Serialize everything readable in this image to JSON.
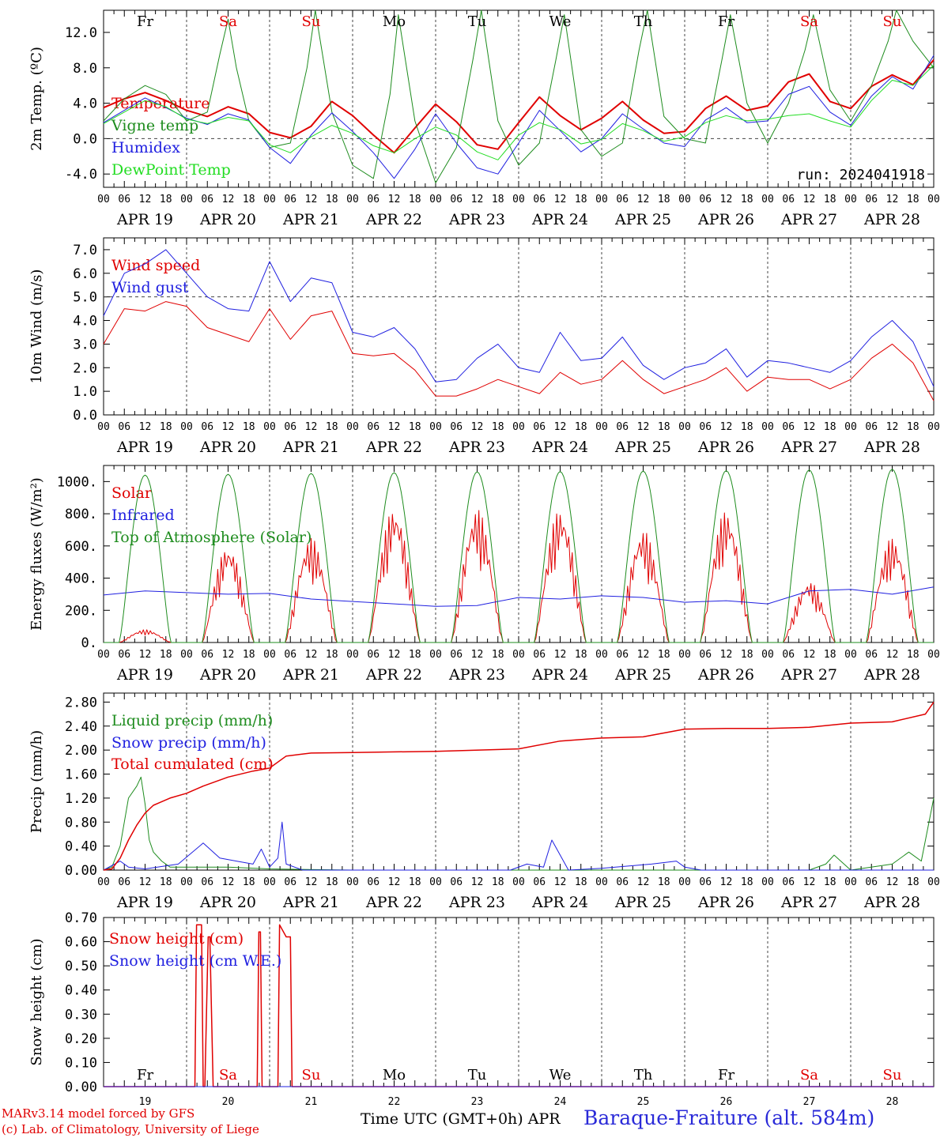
{
  "footer": {
    "model_line": "MARv3.14 model forced by GFS",
    "copyright_line": "(c) Lab. of Climatology, University of Liege",
    "xaxis_label": "Time UTC (GMT+0h)",
    "xaxis_month": "APR",
    "station": "Baraque-Fraiture (alt. 584m)"
  },
  "colors": {
    "red": "#e00000",
    "green": "#1e8c1e",
    "blue": "#2020e0",
    "lightgreen": "#22dd22",
    "grid": "#444444"
  },
  "time_axis": {
    "hour_ticks": [
      "00",
      "06",
      "12",
      "18"
    ],
    "end_tick": "00",
    "dates": [
      "APR 19",
      "APR 20",
      "APR 21",
      "APR 22",
      "APR 23",
      "APR 24",
      "APR 25",
      "APR 26",
      "APR 27",
      "APR 28"
    ],
    "weekdays": [
      "Fr",
      "Sa",
      "Su",
      "Mo",
      "Tu",
      "We",
      "Th",
      "Fr",
      "Sa",
      "Su"
    ],
    "weekend": [
      false,
      true,
      true,
      false,
      false,
      false,
      false,
      false,
      true,
      true
    ],
    "day_numbers": [
      "19",
      "20",
      "21",
      "22",
      "23",
      "24",
      "25",
      "26",
      "27",
      "28"
    ]
  },
  "chart_data": [
    {
      "type": "line",
      "ylabel": "2m Temp. (ºC)",
      "ylim": [
        -5.5,
        14.5
      ],
      "yticks": [
        "-4.0",
        "0.0",
        "4.0",
        "8.0",
        "12.0"
      ],
      "ytick_values": [
        -4,
        0,
        4,
        8,
        12
      ],
      "ref_line": 0,
      "annotation": "run: 2024041918",
      "series": [
        {
          "name": "Temperature",
          "color": "#e00000",
          "width": 2,
          "x": [
            0,
            0.25,
            0.5,
            0.75,
            1,
            1.25,
            1.5,
            1.75,
            2,
            2.25,
            2.5,
            2.75,
            3,
            3.25,
            3.5,
            3.75,
            4,
            4.25,
            4.5,
            4.75,
            5,
            5.25,
            5.5,
            5.75,
            6,
            6.25,
            6.5,
            6.75,
            7,
            7.25,
            7.5,
            7.75,
            8,
            8.25,
            8.5,
            8.75,
            9,
            9.25,
            9.5,
            9.75,
            10
          ],
          "y": [
            3.5,
            4.5,
            5.2,
            4.3,
            3.2,
            2.5,
            3.6,
            2.8,
            0.7,
            0.1,
            1.4,
            4.2,
            2.6,
            0.4,
            -1.6,
            1.2,
            3.9,
            1.9,
            -0.7,
            -1.2,
            1.8,
            4.7,
            2.6,
            1.0,
            2.3,
            4.2,
            2.1,
            0.6,
            0.8,
            3.4,
            4.8,
            3.2,
            3.7,
            6.4,
            7.3,
            4.2,
            3.4,
            5.9,
            7.2,
            6.1,
            8.9
          ]
        },
        {
          "name": "Vigne temp",
          "color": "#1e8c1e",
          "width": 1,
          "x": [
            0,
            0.25,
            0.5,
            0.75,
            1,
            1.25,
            1.4,
            1.5,
            1.6,
            1.75,
            2,
            2.25,
            2.45,
            2.55,
            2.75,
            3,
            3.25,
            3.45,
            3.55,
            3.75,
            4,
            4.25,
            4.45,
            4.55,
            4.75,
            5,
            5.25,
            5.45,
            5.55,
            5.75,
            6,
            6.25,
            6.45,
            6.55,
            6.75,
            7,
            7.25,
            7.45,
            7.55,
            7.75,
            8,
            8.25,
            8.45,
            8.55,
            8.75,
            9,
            9.25,
            9.45,
            9.55,
            9.75,
            10
          ],
          "y": [
            2.0,
            4.5,
            6.0,
            5.0,
            2.0,
            3.0,
            9.5,
            13.5,
            8.0,
            2.0,
            -1.0,
            -0.5,
            8.0,
            14.5,
            3.0,
            -3.0,
            -4.5,
            5.0,
            14.0,
            2.0,
            -5.0,
            -1.0,
            9.0,
            14.5,
            2.0,
            -3.0,
            -0.5,
            9.0,
            14.0,
            1.0,
            -2.0,
            -0.5,
            10.0,
            14.5,
            2.5,
            0.0,
            -0.5,
            9.0,
            14.0,
            4.0,
            -0.5,
            4.0,
            10.0,
            14.0,
            5.5,
            2.0,
            6.0,
            11.0,
            14.5,
            11.0,
            8.0
          ]
        },
        {
          "name": "Humidex",
          "color": "#2020e0",
          "width": 1,
          "x": [
            0,
            0.25,
            0.5,
            0.75,
            1,
            1.25,
            1.5,
            1.75,
            2,
            2.25,
            2.5,
            2.75,
            3,
            3.25,
            3.5,
            3.75,
            4,
            4.25,
            4.5,
            4.75,
            5,
            5.25,
            5.5,
            5.75,
            6,
            6.25,
            6.5,
            6.75,
            7,
            7.25,
            7.5,
            7.75,
            8,
            8.25,
            8.5,
            8.75,
            9,
            9.25,
            9.5,
            9.75,
            10
          ],
          "y": [
            1.8,
            3.2,
            4.6,
            3.5,
            2.3,
            1.6,
            2.8,
            2.1,
            -1.0,
            -2.8,
            0.4,
            2.9,
            0.8,
            -1.6,
            -4.5,
            -1.2,
            2.8,
            -0.5,
            -3.3,
            -4.0,
            -0.5,
            3.2,
            0.9,
            -1.5,
            0.0,
            2.8,
            1.1,
            -0.5,
            -0.9,
            2.1,
            3.5,
            1.8,
            2.0,
            5.0,
            5.9,
            3.0,
            1.5,
            4.8,
            7.0,
            5.6,
            9.4
          ]
        },
        {
          "name": "DewPoint Temp",
          "color": "#22dd22",
          "width": 1,
          "x": [
            0,
            0.25,
            0.5,
            0.75,
            1,
            1.25,
            1.5,
            1.75,
            2,
            2.25,
            2.5,
            2.75,
            3,
            3.25,
            3.5,
            3.75,
            4,
            4.25,
            4.5,
            4.75,
            5,
            5.25,
            5.5,
            5.75,
            6,
            6.25,
            6.5,
            6.75,
            7,
            7.25,
            7.5,
            7.75,
            8,
            8.25,
            8.5,
            8.75,
            9,
            9.25,
            9.5,
            9.75,
            10
          ],
          "y": [
            1.7,
            3.0,
            4.3,
            3.6,
            2.2,
            1.7,
            2.4,
            2.0,
            -0.7,
            -1.6,
            0.2,
            1.5,
            0.6,
            -0.8,
            -1.6,
            0.0,
            1.3,
            0.4,
            -1.5,
            -2.4,
            0.4,
            1.8,
            1.0,
            -0.6,
            -0.1,
            1.7,
            0.9,
            -0.3,
            0.2,
            1.8,
            2.6,
            2.0,
            2.2,
            2.6,
            2.8,
            2.0,
            1.3,
            4.3,
            6.6,
            6.0,
            8.3
          ]
        }
      ]
    },
    {
      "type": "line",
      "ylabel": "10m Wind (m/s)",
      "ylim": [
        0,
        7.5
      ],
      "yticks": [
        "0.0",
        "1.0",
        "2.0",
        "3.0",
        "4.0",
        "5.0",
        "6.0",
        "7.0"
      ],
      "ytick_values": [
        0,
        1,
        2,
        3,
        4,
        5,
        6,
        7
      ],
      "ref_line": 5,
      "series": [
        {
          "name": "Wind speed",
          "color": "#e00000",
          "width": 1,
          "x": [
            0,
            0.25,
            0.5,
            0.75,
            1,
            1.25,
            1.5,
            1.75,
            2,
            2.25,
            2.5,
            2.75,
            3,
            3.25,
            3.5,
            3.75,
            4,
            4.25,
            4.5,
            4.75,
            5,
            5.25,
            5.5,
            5.75,
            6,
            6.25,
            6.5,
            6.75,
            7,
            7.25,
            7.5,
            7.75,
            8,
            8.25,
            8.5,
            8.75,
            9,
            9.25,
            9.5,
            9.75,
            10
          ],
          "y": [
            3.0,
            4.5,
            4.4,
            4.8,
            4.6,
            3.7,
            3.4,
            3.1,
            4.5,
            3.2,
            4.2,
            4.4,
            2.6,
            2.5,
            2.6,
            1.9,
            0.8,
            0.8,
            1.1,
            1.5,
            1.2,
            0.9,
            1.8,
            1.3,
            1.5,
            2.3,
            1.5,
            0.9,
            1.2,
            1.5,
            2.0,
            1.0,
            1.6,
            1.5,
            1.5,
            1.1,
            1.5,
            2.4,
            3.0,
            2.2,
            0.6
          ]
        },
        {
          "name": "Wind gust",
          "color": "#2020e0",
          "width": 1,
          "x": [
            0,
            0.25,
            0.5,
            0.75,
            1,
            1.25,
            1.5,
            1.75,
            2,
            2.25,
            2.5,
            2.75,
            3,
            3.25,
            3.5,
            3.75,
            4,
            4.25,
            4.5,
            4.75,
            5,
            5.25,
            5.5,
            5.75,
            6,
            6.25,
            6.5,
            6.75,
            7,
            7.25,
            7.5,
            7.75,
            8,
            8.25,
            8.5,
            8.75,
            9,
            9.25,
            9.5,
            9.75,
            10
          ],
          "y": [
            4.2,
            6.0,
            6.4,
            7.0,
            6.0,
            5.0,
            4.5,
            4.4,
            6.5,
            4.8,
            5.8,
            5.6,
            3.5,
            3.3,
            3.7,
            2.8,
            1.4,
            1.5,
            2.4,
            3.0,
            2.0,
            1.8,
            3.5,
            2.3,
            2.4,
            3.3,
            2.1,
            1.5,
            2.0,
            2.2,
            2.8,
            1.6,
            2.3,
            2.2,
            2.0,
            1.8,
            2.3,
            3.3,
            4.0,
            3.1,
            1.2
          ]
        }
      ]
    },
    {
      "type": "line",
      "ylabel": "Energy fluxes (W/m²)",
      "ylim": [
        0,
        1100
      ],
      "yticks": [
        "0.",
        "200.",
        "400.",
        "600.",
        "800.",
        "1000."
      ],
      "ytick_values": [
        0,
        200,
        400,
        600,
        800,
        1000
      ],
      "series": [
        {
          "name": "Solar",
          "color": "#e00000",
          "width": 1,
          "day_peaks": [
            80,
            600,
            650,
            840,
            830,
            830,
            700,
            820,
            380,
            650
          ]
        },
        {
          "name": "Infrared",
          "color": "#2020e0",
          "width": 1,
          "x": [
            0,
            0.5,
            1,
            1.5,
            2,
            2.5,
            3,
            3.5,
            4,
            4.5,
            5,
            5.5,
            6,
            6.5,
            7,
            7.5,
            8,
            8.5,
            9,
            9.5,
            10
          ],
          "y": [
            295,
            320,
            310,
            300,
            305,
            270,
            255,
            240,
            225,
            230,
            280,
            270,
            290,
            280,
            250,
            260,
            240,
            320,
            330,
            300,
            345
          ]
        },
        {
          "name": "Top of Atmosphere (Solar)",
          "color": "#1e8c1e",
          "width": 1,
          "day_peaks": [
            1040,
            1045,
            1050,
            1055,
            1060,
            1062,
            1065,
            1068,
            1072,
            1076
          ]
        }
      ]
    },
    {
      "type": "line",
      "ylabel": "Precip (mm/h)",
      "ylim": [
        0,
        2.95
      ],
      "yticks": [
        "0.00",
        "0.40",
        "0.80",
        "1.20",
        "1.60",
        "2.00",
        "2.40",
        "2.80"
      ],
      "ytick_values": [
        0,
        0.4,
        0.8,
        1.2,
        1.6,
        2.0,
        2.4,
        2.8
      ],
      "series": [
        {
          "name": "Liquid precip (mm/h)",
          "color": "#1e8c1e",
          "width": 1,
          "x": [
            0,
            0.1,
            0.2,
            0.3,
            0.4,
            0.45,
            0.5,
            0.55,
            0.6,
            0.7,
            0.8,
            1.0,
            1.5,
            2.0,
            3.0,
            8.5,
            8.7,
            8.8,
            9.0,
            9.5,
            9.7,
            9.85,
            10
          ],
          "y": [
            0,
            0.05,
            0.4,
            1.2,
            1.4,
            1.55,
            1.1,
            0.5,
            0.3,
            0.15,
            0.05,
            0.05,
            0.05,
            0.02,
            0,
            0,
            0.1,
            0.25,
            0,
            0.1,
            0.3,
            0.15,
            1.2
          ]
        },
        {
          "name": "Snow precip (mm/h)",
          "color": "#2020e0",
          "width": 1,
          "x": [
            0,
            0.2,
            0.3,
            0.5,
            0.9,
            1.2,
            1.4,
            1.6,
            1.8,
            1.9,
            2.0,
            2.1,
            2.15,
            2.2,
            2.4,
            3.5,
            4.9,
            5.1,
            5.3,
            5.4,
            5.6,
            6.0,
            6.6,
            6.9,
            7.0,
            7.2,
            8.0,
            10
          ],
          "y": [
            0,
            0.15,
            0.05,
            0.02,
            0.1,
            0.45,
            0.2,
            0.15,
            0.1,
            0.35,
            0.05,
            0.2,
            0.8,
            0.1,
            0,
            0,
            0,
            0.1,
            0.05,
            0.5,
            0,
            0.03,
            0.1,
            0.15,
            0.05,
            0,
            0,
            0
          ]
        },
        {
          "name": "Total cumulated (cm)",
          "color": "#e00000",
          "width": 1.5,
          "x": [
            0,
            0.1,
            0.2,
            0.3,
            0.4,
            0.5,
            0.6,
            0.8,
            1.0,
            1.2,
            1.5,
            1.8,
            2.0,
            2.2,
            2.5,
            3.0,
            4.0,
            5.0,
            5.5,
            6.0,
            6.5,
            7.0,
            7.5,
            8.0,
            8.5,
            9.0,
            9.5,
            9.9,
            10
          ],
          "y": [
            0,
            0.02,
            0.2,
            0.5,
            0.75,
            0.95,
            1.08,
            1.2,
            1.28,
            1.4,
            1.55,
            1.65,
            1.7,
            1.9,
            1.95,
            1.96,
            1.98,
            2.02,
            2.15,
            2.2,
            2.22,
            2.35,
            2.36,
            2.36,
            2.38,
            2.45,
            2.47,
            2.6,
            2.8
          ]
        }
      ]
    },
    {
      "type": "line",
      "ylabel": "Snow height (cm)",
      "ylim": [
        0,
        0.7
      ],
      "yticks": [
        "0.00",
        "0.10",
        "0.20",
        "0.30",
        "0.40",
        "0.50",
        "0.60",
        "0.70"
      ],
      "ytick_values": [
        0,
        0.1,
        0.2,
        0.3,
        0.4,
        0.5,
        0.6,
        0.7
      ],
      "series": [
        {
          "name": "Snow height (cm)",
          "color": "#e00000",
          "width": 1.5,
          "x": [
            0,
            1.1,
            1.12,
            1.18,
            1.2,
            1.22,
            1.26,
            1.28,
            1.32,
            1.34,
            1.36,
            1.85,
            1.87,
            1.89,
            1.91,
            2.1,
            2.12,
            2.2,
            2.25,
            2.27,
            10
          ],
          "y": [
            0,
            0,
            0.67,
            0.67,
            0,
            0,
            0.62,
            0.62,
            0,
            0,
            0,
            0,
            0.64,
            0.64,
            0,
            0,
            0.67,
            0.62,
            0.62,
            0,
            0
          ]
        },
        {
          "name": "Snow height (cm W.E.)",
          "color": "#2020e0",
          "width": 1,
          "x": [
            0,
            10
          ],
          "y": [
            0,
            0
          ]
        }
      ]
    }
  ]
}
